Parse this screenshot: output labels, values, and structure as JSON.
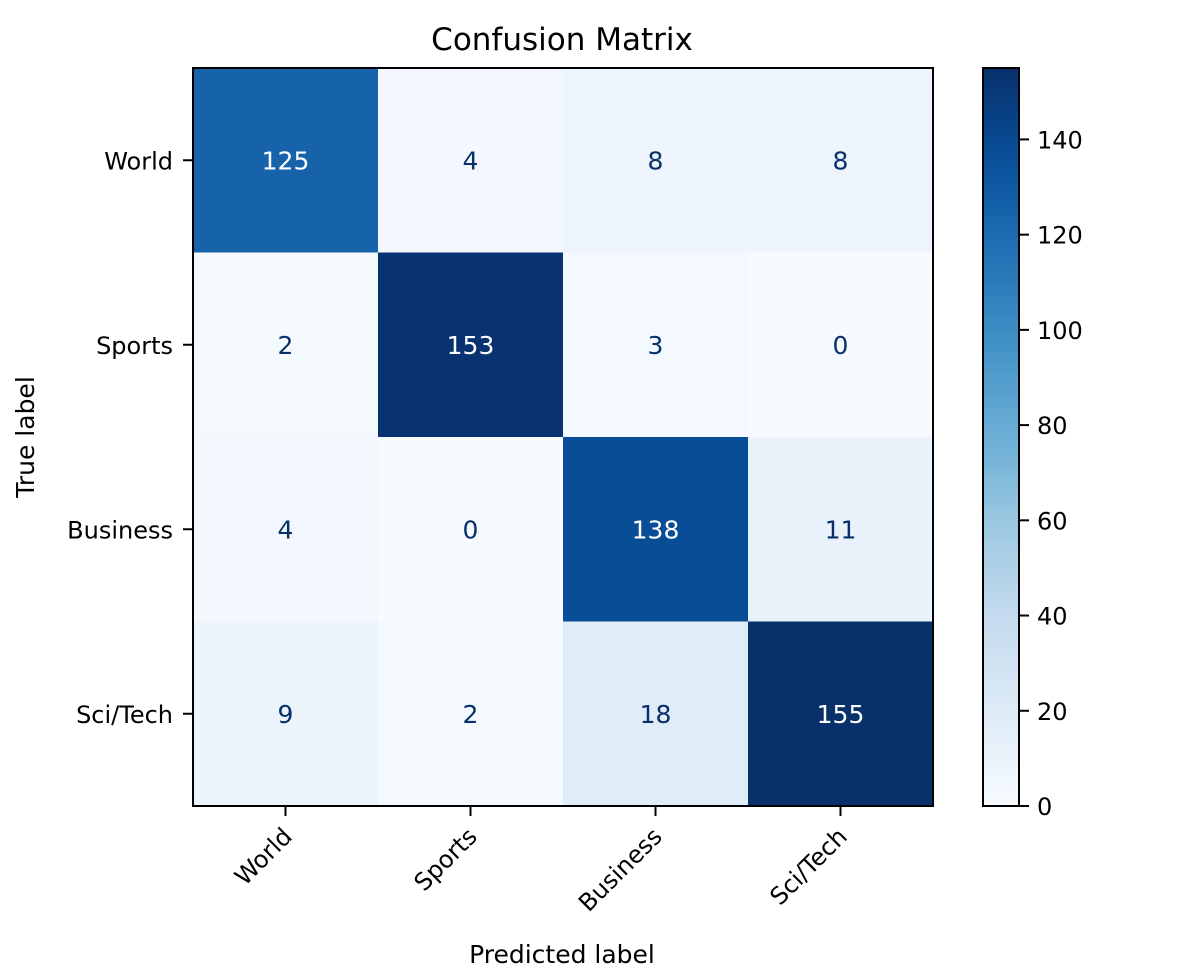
{
  "chart_data": {
    "type": "heatmap",
    "title": "Confusion Matrix",
    "xlabel": "Predicted label",
    "ylabel": "True label",
    "x_categories": [
      "World",
      "Sports",
      "Business",
      "Sci/Tech"
    ],
    "y_categories": [
      "World",
      "Sports",
      "Business",
      "Sci/Tech"
    ],
    "values": [
      [
        125,
        4,
        8,
        8
      ],
      [
        2,
        153,
        3,
        0
      ],
      [
        4,
        0,
        138,
        11
      ],
      [
        9,
        2,
        18,
        155
      ]
    ],
    "colormap": "Blues",
    "color_range": [
      0,
      155
    ],
    "colorbar_ticks": [
      0,
      20,
      40,
      60,
      80,
      100,
      120,
      140
    ],
    "colors": {
      "low": "#f7fbff",
      "high": "#08306b",
      "text_dark_cell": "#ffffff",
      "text_light_cell": "#08306b"
    }
  }
}
